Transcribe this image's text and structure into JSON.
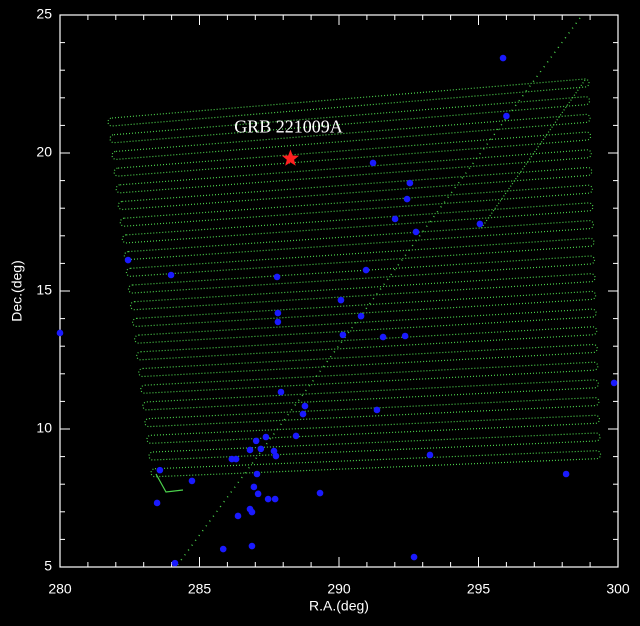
{
  "chart_data": {
    "type": "scatter",
    "xlabel": "R.A.(deg)",
    "ylabel": "Dec.(deg)",
    "xlim": [
      280,
      300
    ],
    "ylim": [
      5,
      25
    ],
    "xticks": [
      280,
      285,
      290,
      295,
      300
    ],
    "yticks": [
      5,
      10,
      15,
      20,
      25
    ],
    "series": [
      {
        "color": "#1a1aff",
        "x": [
          295.88,
          296.0,
          291.22,
          292.54,
          292.44,
          292.01,
          292.76,
          295.05,
          282.44,
          283.98,
          290.97,
          287.78,
          290.07,
          287.81,
          287.81,
          290.79,
          290.14,
          291.58,
          292.37,
          280.0,
          287.92,
          299.86,
          288.78,
          288.71,
          291.36,
          288.46,
          287.38,
          287.03,
          286.81,
          287.2,
          287.67,
          287.74,
          286.31,
          286.16,
          293.26,
          283.58,
          284.73,
          287.06,
          286.95,
          287.1,
          287.46,
          287.71,
          289.32,
          283.48,
          298.14,
          286.81,
          286.88,
          286.38,
          285.85,
          286.88,
          292.69,
          284.12
        ],
        "values": [
          23.44,
          21.34,
          19.64,
          18.91,
          18.33,
          17.61,
          17.14,
          17.43,
          16.12,
          15.58,
          15.76,
          15.51,
          14.67,
          14.2,
          13.88,
          14.09,
          13.41,
          13.33,
          13.37,
          13.48,
          11.34,
          11.67,
          10.83,
          10.54,
          10.69,
          9.75,
          9.71,
          9.57,
          9.24,
          9.28,
          9.2,
          9.02,
          8.91,
          8.91,
          9.06,
          8.51,
          8.12,
          8.37,
          7.9,
          7.65,
          7.46,
          7.46,
          7.68,
          7.32,
          8.37,
          7.1,
          6.99,
          6.85,
          5.65,
          5.76,
          5.36,
          5.14
        ]
      }
    ],
    "annotations": [
      {
        "text": "GRB 221009A",
        "x": 288.26,
        "y": 19.8,
        "color": "#ff2020"
      }
    ]
  }
}
